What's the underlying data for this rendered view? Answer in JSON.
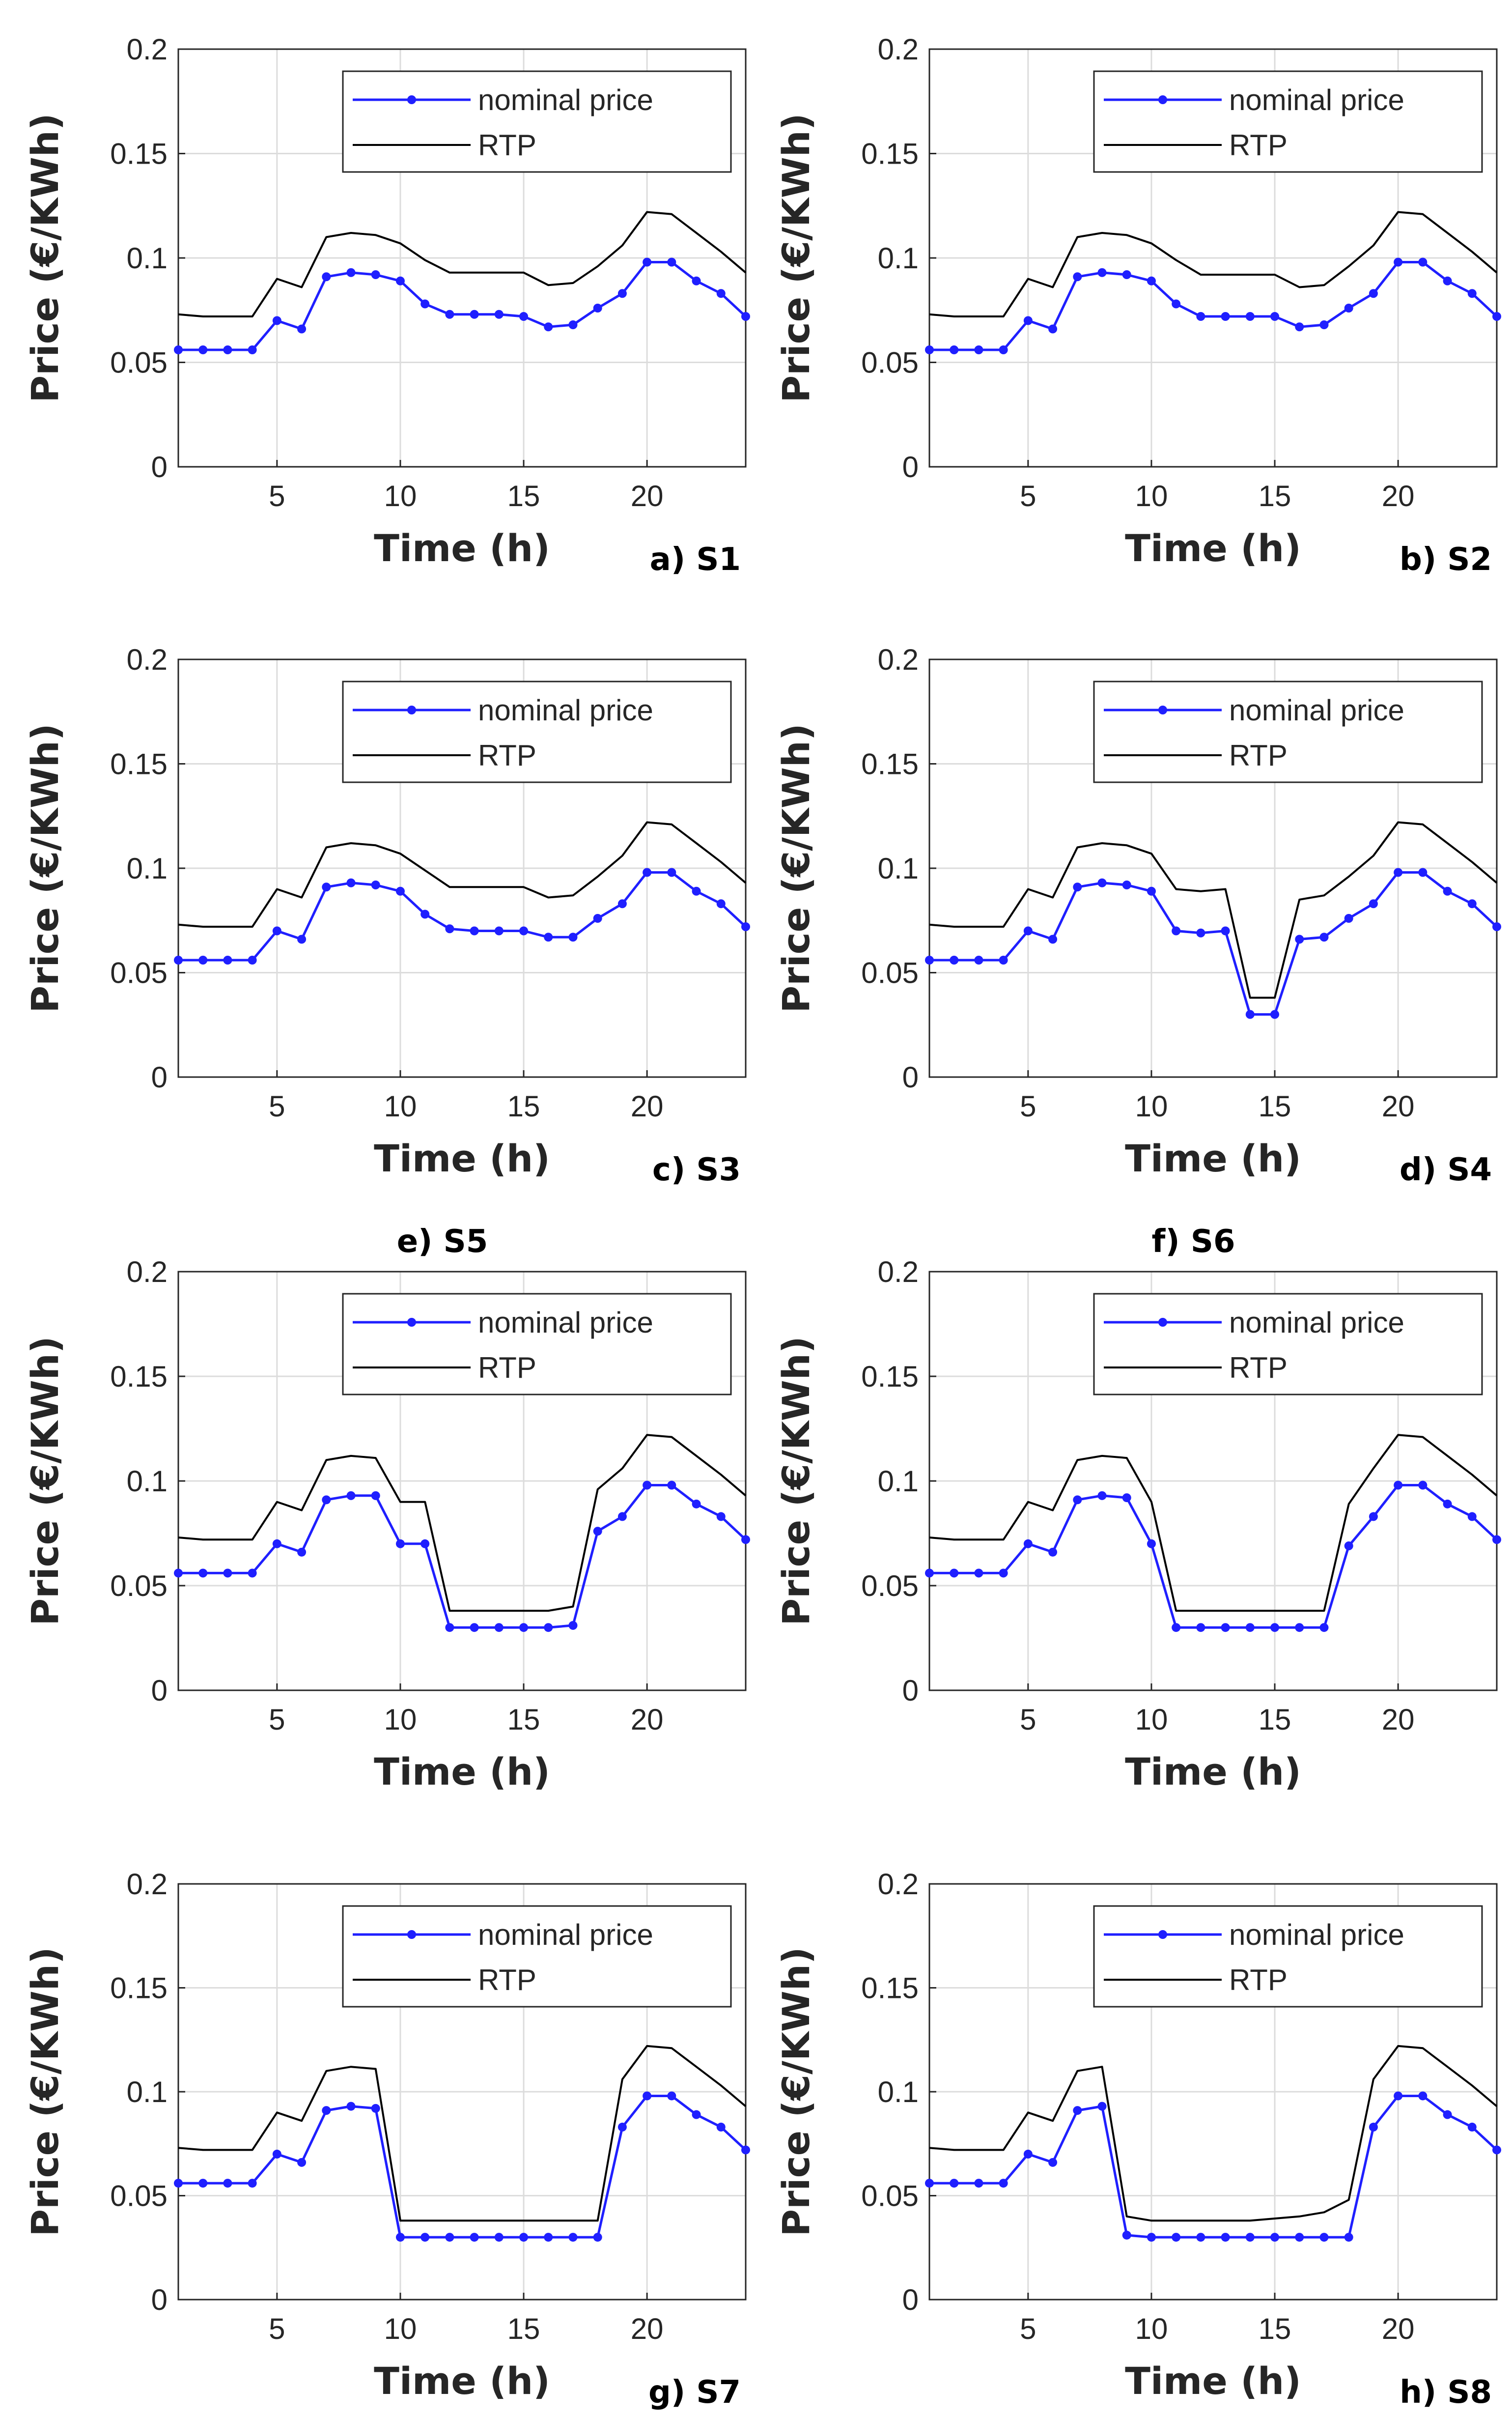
{
  "chart_data": [
    {
      "type": "line",
      "caption": "a) S1",
      "xlabel": "Time (h)",
      "ylabel": "Price (€/KWh)",
      "xlim": [
        1,
        24
      ],
      "ylim": [
        0,
        0.2
      ],
      "xticks": [
        "5",
        "10",
        "15",
        "20"
      ],
      "yticks": [
        "0",
        "0.05",
        "0.1",
        "0.15",
        "0.2"
      ],
      "grid": true,
      "legend_position": "top-right",
      "x": [
        1,
        2,
        3,
        4,
        5,
        6,
        7,
        8,
        9,
        10,
        11,
        12,
        13,
        14,
        15,
        16,
        17,
        18,
        19,
        20,
        21,
        22,
        23,
        24
      ],
      "series": [
        {
          "name": "nominal price",
          "values": [
            0.056,
            0.056,
            0.056,
            0.056,
            0.07,
            0.066,
            0.091,
            0.093,
            0.092,
            0.089,
            0.078,
            0.073,
            0.073,
            0.073,
            0.072,
            0.067,
            0.068,
            0.076,
            0.083,
            0.098,
            0.098,
            0.089,
            0.083,
            0.072
          ]
        },
        {
          "name": "RTP",
          "values": [
            0.073,
            0.072,
            0.072,
            0.072,
            0.09,
            0.086,
            0.11,
            0.112,
            0.111,
            0.107,
            0.099,
            0.093,
            0.093,
            0.093,
            0.093,
            0.087,
            0.088,
            0.096,
            0.106,
            0.122,
            0.121,
            0.112,
            0.103,
            0.093
          ]
        }
      ]
    },
    {
      "type": "line",
      "caption": "b) S2",
      "xlabel": "Time (h)",
      "ylabel": "Price (€/KWh)",
      "xlim": [
        1,
        24
      ],
      "ylim": [
        0,
        0.2
      ],
      "xticks": [
        "5",
        "10",
        "15",
        "20"
      ],
      "yticks": [
        "0",
        "0.05",
        "0.1",
        "0.15",
        "0.2"
      ],
      "grid": true,
      "legend_position": "top-right",
      "x": [
        1,
        2,
        3,
        4,
        5,
        6,
        7,
        8,
        9,
        10,
        11,
        12,
        13,
        14,
        15,
        16,
        17,
        18,
        19,
        20,
        21,
        22,
        23,
        24
      ],
      "series": [
        {
          "name": "nominal price",
          "values": [
            0.056,
            0.056,
            0.056,
            0.056,
            0.07,
            0.066,
            0.091,
            0.093,
            0.092,
            0.089,
            0.078,
            0.072,
            0.072,
            0.072,
            0.072,
            0.067,
            0.068,
            0.076,
            0.083,
            0.098,
            0.098,
            0.089,
            0.083,
            0.072
          ]
        },
        {
          "name": "RTP",
          "values": [
            0.073,
            0.072,
            0.072,
            0.072,
            0.09,
            0.086,
            0.11,
            0.112,
            0.111,
            0.107,
            0.099,
            0.092,
            0.092,
            0.092,
            0.092,
            0.086,
            0.087,
            0.096,
            0.106,
            0.122,
            0.121,
            0.112,
            0.103,
            0.093
          ]
        }
      ]
    },
    {
      "type": "line",
      "caption": "c) S3",
      "xlabel": "Time (h)",
      "ylabel": "Price (€/KWh)",
      "xlim": [
        1,
        24
      ],
      "ylim": [
        0,
        0.2
      ],
      "xticks": [
        "5",
        "10",
        "15",
        "20"
      ],
      "yticks": [
        "0",
        "0.05",
        "0.1",
        "0.15",
        "0.2"
      ],
      "grid": true,
      "legend_position": "top-right",
      "x": [
        1,
        2,
        3,
        4,
        5,
        6,
        7,
        8,
        9,
        10,
        11,
        12,
        13,
        14,
        15,
        16,
        17,
        18,
        19,
        20,
        21,
        22,
        23,
        24
      ],
      "series": [
        {
          "name": "nominal price",
          "values": [
            0.056,
            0.056,
            0.056,
            0.056,
            0.07,
            0.066,
            0.091,
            0.093,
            0.092,
            0.089,
            0.078,
            0.071,
            0.07,
            0.07,
            0.07,
            0.067,
            0.067,
            0.076,
            0.083,
            0.098,
            0.098,
            0.089,
            0.083,
            0.072
          ]
        },
        {
          "name": "RTP",
          "values": [
            0.073,
            0.072,
            0.072,
            0.072,
            0.09,
            0.086,
            0.11,
            0.112,
            0.111,
            0.107,
            0.099,
            0.091,
            0.091,
            0.091,
            0.091,
            0.086,
            0.087,
            0.096,
            0.106,
            0.122,
            0.121,
            0.112,
            0.103,
            0.093
          ]
        }
      ]
    },
    {
      "type": "line",
      "caption": "d) S4",
      "xlabel": "Time (h)",
      "ylabel": "Price (€/KWh)",
      "xlim": [
        1,
        24
      ],
      "ylim": [
        0,
        0.2
      ],
      "xticks": [
        "5",
        "10",
        "15",
        "20"
      ],
      "yticks": [
        "0",
        "0.05",
        "0.1",
        "0.15",
        "0.2"
      ],
      "grid": true,
      "legend_position": "top-right",
      "x": [
        1,
        2,
        3,
        4,
        5,
        6,
        7,
        8,
        9,
        10,
        11,
        12,
        13,
        14,
        15,
        16,
        17,
        18,
        19,
        20,
        21,
        22,
        23,
        24
      ],
      "series": [
        {
          "name": "nominal price",
          "values": [
            0.056,
            0.056,
            0.056,
            0.056,
            0.07,
            0.066,
            0.091,
            0.093,
            0.092,
            0.089,
            0.07,
            0.069,
            0.07,
            0.03,
            0.03,
            0.066,
            0.067,
            0.076,
            0.083,
            0.098,
            0.098,
            0.089,
            0.083,
            0.072
          ]
        },
        {
          "name": "RTP",
          "values": [
            0.073,
            0.072,
            0.072,
            0.072,
            0.09,
            0.086,
            0.11,
            0.112,
            0.111,
            0.107,
            0.09,
            0.089,
            0.09,
            0.038,
            0.038,
            0.085,
            0.087,
            0.096,
            0.106,
            0.122,
            0.121,
            0.112,
            0.103,
            0.093
          ]
        }
      ]
    },
    {
      "type": "line",
      "caption": "e) S5",
      "xlabel": "Time (h)",
      "ylabel": "Price (€/KWh)",
      "xlim": [
        1,
        24
      ],
      "ylim": [
        0,
        0.2
      ],
      "xticks": [
        "5",
        "10",
        "15",
        "20"
      ],
      "yticks": [
        "0",
        "0.05",
        "0.1",
        "0.15",
        "0.2"
      ],
      "grid": true,
      "legend_position": "top-right",
      "x": [
        1,
        2,
        3,
        4,
        5,
        6,
        7,
        8,
        9,
        10,
        11,
        12,
        13,
        14,
        15,
        16,
        17,
        18,
        19,
        20,
        21,
        22,
        23,
        24
      ],
      "series": [
        {
          "name": "nominal price",
          "values": [
            0.056,
            0.056,
            0.056,
            0.056,
            0.07,
            0.066,
            0.091,
            0.093,
            0.093,
            0.07,
            0.07,
            0.03,
            0.03,
            0.03,
            0.03,
            0.03,
            0.031,
            0.076,
            0.083,
            0.098,
            0.098,
            0.089,
            0.083,
            0.072
          ]
        },
        {
          "name": "RTP",
          "values": [
            0.073,
            0.072,
            0.072,
            0.072,
            0.09,
            0.086,
            0.11,
            0.112,
            0.111,
            0.09,
            0.09,
            0.038,
            0.038,
            0.038,
            0.038,
            0.038,
            0.04,
            0.096,
            0.106,
            0.122,
            0.121,
            0.112,
            0.103,
            0.093
          ]
        }
      ]
    },
    {
      "type": "line",
      "caption": "f) S6",
      "xlabel": "Time (h)",
      "ylabel": "Price (€/KWh)",
      "xlim": [
        1,
        24
      ],
      "ylim": [
        0,
        0.2
      ],
      "xticks": [
        "5",
        "10",
        "15",
        "20"
      ],
      "yticks": [
        "0",
        "0.05",
        "0.1",
        "0.15",
        "0.2"
      ],
      "grid": true,
      "legend_position": "top-right",
      "x": [
        1,
        2,
        3,
        4,
        5,
        6,
        7,
        8,
        9,
        10,
        11,
        12,
        13,
        14,
        15,
        16,
        17,
        18,
        19,
        20,
        21,
        22,
        23,
        24
      ],
      "series": [
        {
          "name": "nominal price",
          "values": [
            0.056,
            0.056,
            0.056,
            0.056,
            0.07,
            0.066,
            0.091,
            0.093,
            0.092,
            0.07,
            0.03,
            0.03,
            0.03,
            0.03,
            0.03,
            0.03,
            0.03,
            0.069,
            0.083,
            0.098,
            0.098,
            0.089,
            0.083,
            0.072
          ]
        },
        {
          "name": "RTP",
          "values": [
            0.073,
            0.072,
            0.072,
            0.072,
            0.09,
            0.086,
            0.11,
            0.112,
            0.111,
            0.09,
            0.038,
            0.038,
            0.038,
            0.038,
            0.038,
            0.038,
            0.038,
            0.089,
            0.106,
            0.122,
            0.121,
            0.112,
            0.103,
            0.093
          ]
        }
      ]
    },
    {
      "type": "line",
      "caption": "g) S7",
      "xlabel": "Time (h)",
      "ylabel": "Price (€/KWh)",
      "xlim": [
        1,
        24
      ],
      "ylim": [
        0,
        0.2
      ],
      "xticks": [
        "5",
        "10",
        "15",
        "20"
      ],
      "yticks": [
        "0",
        "0.05",
        "0.1",
        "0.15",
        "0.2"
      ],
      "grid": true,
      "legend_position": "top-right",
      "x": [
        1,
        2,
        3,
        4,
        5,
        6,
        7,
        8,
        9,
        10,
        11,
        12,
        13,
        14,
        15,
        16,
        17,
        18,
        19,
        20,
        21,
        22,
        23,
        24
      ],
      "series": [
        {
          "name": "nominal price",
          "values": [
            0.056,
            0.056,
            0.056,
            0.056,
            0.07,
            0.066,
            0.091,
            0.093,
            0.092,
            0.03,
            0.03,
            0.03,
            0.03,
            0.03,
            0.03,
            0.03,
            0.03,
            0.03,
            0.083,
            0.098,
            0.098,
            0.089,
            0.083,
            0.072
          ]
        },
        {
          "name": "RTP",
          "values": [
            0.073,
            0.072,
            0.072,
            0.072,
            0.09,
            0.086,
            0.11,
            0.112,
            0.111,
            0.038,
            0.038,
            0.038,
            0.038,
            0.038,
            0.038,
            0.038,
            0.038,
            0.038,
            0.106,
            0.122,
            0.121,
            0.112,
            0.103,
            0.093
          ]
        }
      ]
    },
    {
      "type": "line",
      "caption": "h) S8",
      "xlabel": "Time (h)",
      "ylabel": "Price (€/KWh)",
      "xlim": [
        1,
        24
      ],
      "ylim": [
        0,
        0.2
      ],
      "xticks": [
        "5",
        "10",
        "15",
        "20"
      ],
      "yticks": [
        "0",
        "0.05",
        "0.1",
        "0.15",
        "0.2"
      ],
      "grid": true,
      "legend_position": "top-right",
      "x": [
        1,
        2,
        3,
        4,
        5,
        6,
        7,
        8,
        9,
        10,
        11,
        12,
        13,
        14,
        15,
        16,
        17,
        18,
        19,
        20,
        21,
        22,
        23,
        24
      ],
      "series": [
        {
          "name": "nominal price",
          "values": [
            0.056,
            0.056,
            0.056,
            0.056,
            0.07,
            0.066,
            0.091,
            0.093,
            0.031,
            0.03,
            0.03,
            0.03,
            0.03,
            0.03,
            0.03,
            0.03,
            0.03,
            0.03,
            0.083,
            0.098,
            0.098,
            0.089,
            0.083,
            0.072
          ]
        },
        {
          "name": "RTP",
          "values": [
            0.073,
            0.072,
            0.072,
            0.072,
            0.09,
            0.086,
            0.11,
            0.112,
            0.04,
            0.038,
            0.038,
            0.038,
            0.038,
            0.038,
            0.039,
            0.04,
            0.042,
            0.048,
            0.106,
            0.122,
            0.121,
            0.112,
            0.103,
            0.093
          ]
        }
      ]
    }
  ],
  "colors": {
    "nominal": "#1f1fff",
    "rtp": "#000000",
    "grid": "#dcdcdc",
    "axis": "#262626"
  }
}
